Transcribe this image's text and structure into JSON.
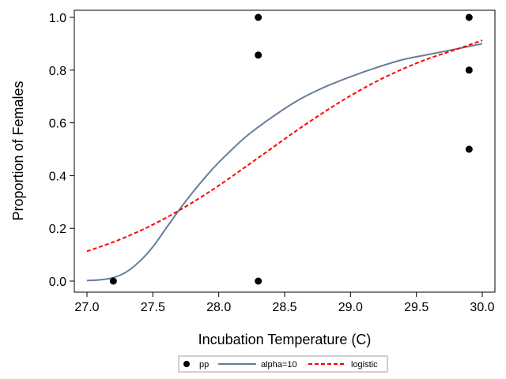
{
  "chart_data": {
    "type": "scatter",
    "xlabel": "Incubation Temperature (C)",
    "ylabel": "Proportion of Females",
    "xlim": [
      27.0,
      30.0
    ],
    "ylim": [
      0.0,
      1.0
    ],
    "x_ticks": [
      "27.0",
      "27.5",
      "28.0",
      "28.5",
      "29.0",
      "29.5",
      "30.0"
    ],
    "y_ticks": [
      "0.0",
      "0.2",
      "0.4",
      "0.6",
      "0.8",
      "1.0"
    ],
    "grid": false,
    "legend_position": "bottom",
    "series": [
      {
        "name": "pp",
        "kind": "scatter",
        "color": "#000000",
        "x": [
          27.2,
          28.3,
          28.3,
          28.3,
          29.9,
          29.9,
          29.9
        ],
        "y": [
          0.0,
          0.0,
          0.857,
          1.0,
          0.5,
          0.8,
          1.0
        ]
      },
      {
        "name": "alpha=10",
        "kind": "line",
        "style": "solid",
        "color": "#667d9b",
        "x": [
          27.0,
          27.1,
          27.2,
          27.3,
          27.4,
          27.5,
          27.6,
          27.7,
          27.8,
          27.9,
          28.0,
          28.2,
          28.4,
          28.6,
          28.8,
          29.0,
          29.2,
          29.4,
          29.6,
          29.8,
          30.0
        ],
        "y": [
          0.002,
          0.005,
          0.013,
          0.035,
          0.075,
          0.13,
          0.2,
          0.27,
          0.335,
          0.395,
          0.45,
          0.545,
          0.62,
          0.685,
          0.735,
          0.775,
          0.81,
          0.84,
          0.86,
          0.88,
          0.9
        ]
      },
      {
        "name": "logistic",
        "kind": "line",
        "style": "dashed",
        "color": "#ff0000",
        "x": [
          27.0,
          27.2,
          27.4,
          27.6,
          27.8,
          28.0,
          28.2,
          28.4,
          28.6,
          28.8,
          29.0,
          29.2,
          29.4,
          29.6,
          29.8,
          30.0
        ],
        "y": [
          0.113,
          0.148,
          0.19,
          0.24,
          0.298,
          0.362,
          0.432,
          0.503,
          0.574,
          0.641,
          0.703,
          0.758,
          0.805,
          0.845,
          0.878,
          0.913
        ]
      }
    ]
  }
}
